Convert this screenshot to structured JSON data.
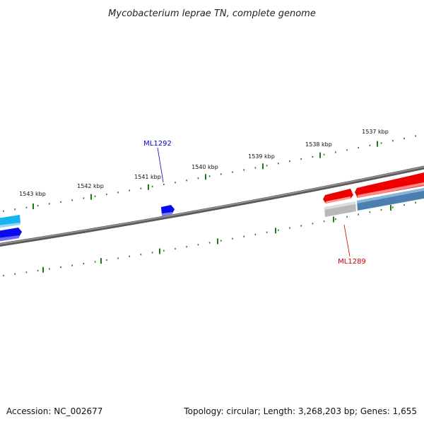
{
  "title": "Mycobacterium leprae TN, complete genome",
  "accession_label": "Accession: NC_002677",
  "summary_label": "Topology: circular; Length: 3,268,203 bp; Genes: 1,655",
  "scale_labels": [
    "1537 kbp",
    "1538 kbp",
    "1539 kbp",
    "1540 kbp",
    "1541 kbp",
    "1542 kbp",
    "1543 kbp"
  ],
  "gene_labels": {
    "top": {
      "text": "ML1292",
      "color": "#0000cc"
    },
    "bottom": {
      "text": "ML1289",
      "color": "#cc0000"
    }
  },
  "colors": {
    "backbone": "#777777",
    "tick": "#1a7a1a",
    "gene_blue": "#0a0af0",
    "gene_cyan": "#18b4f0",
    "gene_red": "#ee0000",
    "gene_steel": "#4a7fb0",
    "gene_grey": "#b8b8b8"
  }
}
